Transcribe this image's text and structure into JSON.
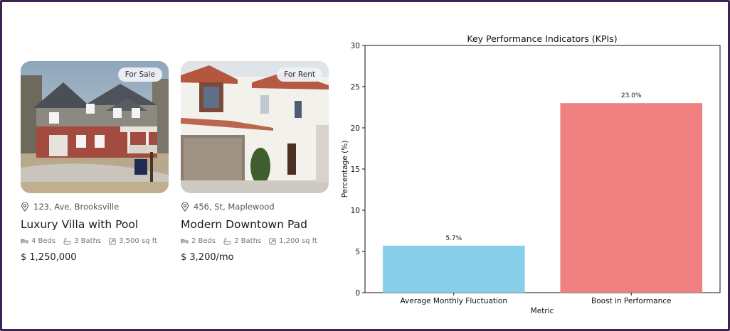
{
  "listings": [
    {
      "badge": "For Sale",
      "address": "123, Ave, Brooksville",
      "title": "Luxury Villa with Pool",
      "beds": "4 Beds",
      "baths": "3 Baths",
      "area": "3,500 sq ft",
      "price": "$ 1,250,000",
      "photo_icon": "brick-house-photo"
    },
    {
      "badge": "For Rent",
      "address": "456, St, Maplewood",
      "title": "Modern Downtown Pad",
      "beds": "2 Beds",
      "baths": "2 Baths",
      "area": "1,200 sq ft",
      "price": "$ 3,200/mo",
      "photo_icon": "white-stucco-house-photo"
    }
  ],
  "chart_data": {
    "type": "bar",
    "title": "Key Performance Indicators (KPIs)",
    "xlabel": "Metric",
    "ylabel": "Percentage (%)",
    "categories": [
      "Average Monthly Fluctuation",
      "Boost in Performance"
    ],
    "values": [
      5.7,
      23.0
    ],
    "data_labels": [
      "5.7%",
      "23.0%"
    ],
    "colors": [
      "#87ceeb",
      "#f08080"
    ],
    "ylim": [
      0,
      30
    ],
    "yticks": [
      0,
      5,
      10,
      15,
      20,
      25,
      30
    ],
    "grid": false,
    "legend": "none"
  }
}
